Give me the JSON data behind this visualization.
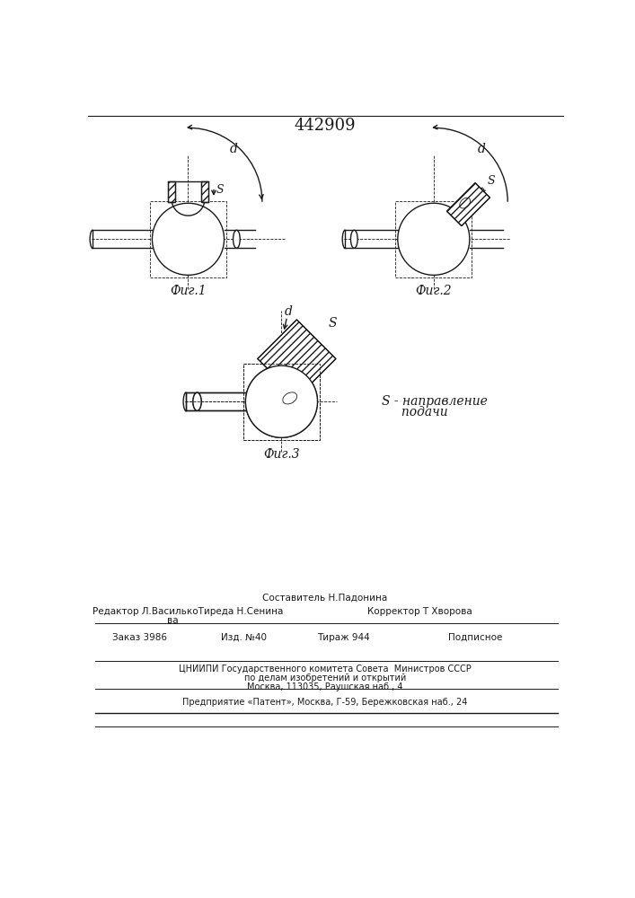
{
  "patent_number": "442909",
  "fig1_label": "Фиг.1",
  "fig2_label": "Фиг.2",
  "fig3_label": "Фиг.3",
  "label_d": "d",
  "label_s": "S",
  "label_s_desc1": "S - направление",
  "label_s_desc2": "     подачи",
  "footer_line1": "Составитель Н.Падонина",
  "footer_line2a": "Редактор Л.ВасилькоТиреда Н.Сенина",
  "footer_line2b": "ва",
  "footer_line2c": "Корректор Т Хворова",
  "footer_line3a": "Заказ 3986",
  "footer_line3b": "Изд. №40",
  "footer_line3c": "Тираж 944",
  "footer_line3d": "Подписное",
  "footer_line4": "ЦНИИПИ Государственного комитета Совета  Министров СССР",
  "footer_line5": "по делам изобретений и открытий",
  "footer_line6": "Москва, 113035, Раушская наб., 4",
  "footer_line7": "Предприятие «Патент», Москва, Г-59, Бережковская наб., 24",
  "line_color": "#1a1a1a"
}
